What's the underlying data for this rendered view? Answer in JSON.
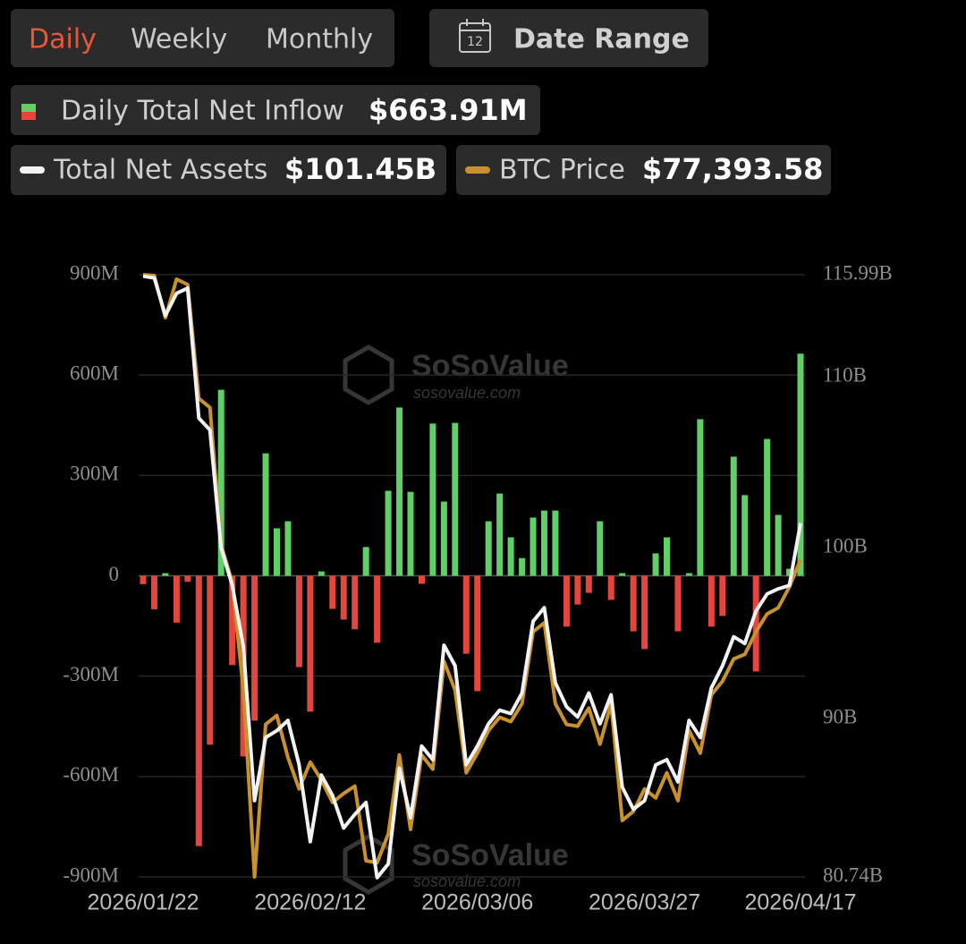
{
  "controls": {
    "periods": [
      "Daily",
      "Weekly",
      "Monthly"
    ],
    "active": 0,
    "date_range": "Date Range",
    "calendar_day": "12"
  },
  "watermark": {
    "brand": "SoSoValue",
    "site": "sosovalue.com"
  },
  "chart_data": {
    "type": "bar",
    "categories": [
      "2026/01/22",
      null,
      null,
      null,
      null,
      null,
      null,
      null,
      null,
      null,
      null,
      null,
      null,
      null,
      null,
      "2026/02/12",
      null,
      null,
      null,
      null,
      null,
      null,
      null,
      null,
      null,
      null,
      null,
      null,
      null,
      null,
      "2026/03/06",
      null,
      null,
      null,
      null,
      null,
      null,
      null,
      null,
      null,
      null,
      null,
      null,
      null,
      null,
      "2026/03/27",
      null,
      null,
      null,
      null,
      null,
      null,
      null,
      null,
      null,
      null,
      null,
      null,
      null,
      "2026/04/17"
    ],
    "series": [
      {
        "name": "Daily Total Net Inflow",
        "latest_label": "$663.91M",
        "type": "bar",
        "positive_color": "#5fcf66",
        "negative_color": "#e4463d",
        "values": [
          -25,
          -100,
          8,
          -140,
          -18,
          -808,
          -505,
          556,
          -267,
          -540,
          -433,
          366,
          142,
          163,
          -273,
          -406,
          13,
          -99,
          -131,
          -160,
          86,
          -200,
          254,
          503,
          251,
          -24,
          455,
          222,
          457,
          -233,
          -345,
          163,
          246,
          115,
          53,
          174,
          195,
          195,
          -152,
          -86,
          -51,
          163,
          -72,
          8,
          -166,
          -219,
          67,
          115,
          -166,
          8,
          468,
          -152,
          -120,
          356,
          241,
          -286,
          409,
          182,
          21,
          663.91
        ]
      },
      {
        "name": "Total Net Assets",
        "latest_label": "$101.45B",
        "type": "line",
        "axis": "y2",
        "color": "#f2f2f2",
        "values": [
          115.9,
          115.8,
          113.6,
          114.9,
          115.2,
          107.6,
          106.9,
          100.0,
          97.8,
          94.2,
          85.2,
          88.9,
          89.3,
          89.9,
          87.3,
          82.8,
          86.7,
          85.5,
          83.6,
          84.4,
          85.1,
          80.7,
          81.5,
          87.1,
          84.2,
          88.4,
          87.6,
          94.3,
          93.1,
          87.3,
          88.4,
          89.7,
          90.5,
          90.3,
          91.5,
          95.7,
          96.5,
          92.1,
          90.7,
          90.1,
          91.5,
          89.7,
          91.4,
          86.0,
          84.7,
          85.2,
          87.3,
          87.6,
          86.3,
          89.9,
          88.9,
          91.8,
          93.1,
          94.8,
          94.4,
          96.3,
          97.3,
          97.6,
          97.8,
          101.45
        ]
      },
      {
        "name": "BTC Price",
        "latest_label": "$77,393.58",
        "type": "line",
        "color": "#c9912b",
        "values": [
          89800,
          89760,
          87925,
          89600,
          89370,
          84410,
          84020,
          78040,
          76400,
          71710,
          63580,
          70220,
          70610,
          68780,
          67410,
          68580,
          67800,
          66820,
          67210,
          67530,
          64280,
          64200,
          65450,
          68890,
          65650,
          68890,
          68270,
          72960,
          71710,
          68110,
          68970,
          69950,
          70530,
          70340,
          71120,
          74250,
          74640,
          71120,
          70220,
          70140,
          70930,
          69360,
          71120,
          66040,
          66430,
          67410,
          67020,
          68110,
          66900,
          69950,
          68970,
          71510,
          72100,
          73070,
          73270,
          74250,
          75030,
          75300,
          76200,
          77393.58
        ]
      }
    ],
    "ylim": [
      -900,
      900
    ],
    "yticks": [
      {
        "value": 900,
        "label": "900M"
      },
      {
        "value": 600,
        "label": "600M"
      },
      {
        "value": 300,
        "label": "300M"
      },
      0,
      {
        "value": -300,
        "label": "-300M"
      },
      {
        "value": -600,
        "label": "-600M"
      },
      {
        "value": -900,
        "label": "-900M"
      }
    ],
    "y2lim": [
      80.74,
      115.99
    ],
    "y2ticks": [
      {
        "value": 115.99,
        "label": "115.99B"
      },
      {
        "value": 110,
        "label": "110B"
      },
      {
        "value": 100,
        "label": "100B"
      },
      {
        "value": 90,
        "label": "90B"
      },
      {
        "value": 80.74,
        "label": "80.74B"
      }
    ],
    "grid": true
  }
}
